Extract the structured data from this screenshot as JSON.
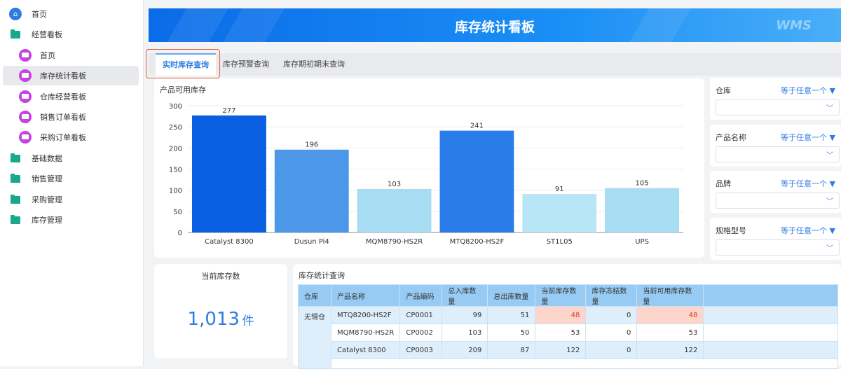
{
  "sidebar": {
    "items": [
      {
        "label": "首页",
        "icon": "home-icon"
      },
      {
        "label": "经营看板",
        "icon": "folder-icon"
      },
      {
        "label": "首页",
        "icon": "dashboard-icon"
      },
      {
        "label": "库存统计看板",
        "icon": "dashboard-icon",
        "active": true
      },
      {
        "label": "仓库经营看板",
        "icon": "dashboard-icon"
      },
      {
        "label": "销售订单看板",
        "icon": "dashboard-icon"
      },
      {
        "label": "采购订单看板",
        "icon": "dashboard-icon"
      },
      {
        "label": "基础数据",
        "icon": "folder-icon"
      },
      {
        "label": "销售管理",
        "icon": "folder-icon"
      },
      {
        "label": "采购管理",
        "icon": "folder-icon"
      },
      {
        "label": "库存管理",
        "icon": "folder-icon"
      }
    ]
  },
  "banner": {
    "title": "库存统计看板",
    "logo": "WMS"
  },
  "tabs": [
    "实时库存查询",
    "库存预警查询",
    "库存期初期末查询"
  ],
  "filters": [
    {
      "label": "仓库",
      "op": "等于任意一个"
    },
    {
      "label": "产品名称",
      "op": "等于任意一个"
    },
    {
      "label": "品牌",
      "op": "等于任意一个"
    },
    {
      "label": "规格型号",
      "op": "等于任意一个"
    }
  ],
  "stat": {
    "title": "当前库存数",
    "value": "1,013",
    "unit": "件"
  },
  "table": {
    "title": "库存统计查询",
    "headers": [
      "仓库",
      "产品名称",
      "产品编码",
      "总入库数量",
      "总出库数量",
      "当前库存数量",
      "库存冻结数量",
      "当前可用库存数量"
    ],
    "warehouse": "无锡仓",
    "rows": [
      [
        "MTQ8200-HS2F",
        "CP0001",
        "99",
        "51",
        "48",
        "0",
        "48"
      ],
      [
        "MQM8790-HS2R",
        "CP0002",
        "103",
        "50",
        "53",
        "0",
        "53"
      ],
      [
        "Catalyst 8300",
        "CP0003",
        "209",
        "87",
        "122",
        "0",
        "122"
      ]
    ]
  },
  "chart_data": {
    "type": "bar",
    "title": "产品可用库存",
    "categories": [
      "Catalyst 8300",
      "Dusun Pi4",
      "MQM8790-HS2R",
      "MTQ8200-HS2F",
      "ST1L05",
      "UPS"
    ],
    "values": [
      277,
      196,
      103,
      241,
      91,
      105
    ],
    "colors": [
      "#0a5ee0",
      "#4d97e8",
      "#a8dcf2",
      "#2a7de8",
      "#b8e6f6",
      "#a8dcf2"
    ],
    "ylim": [
      0,
      300
    ],
    "yticks": [
      "0",
      "50",
      "100",
      "150",
      "200",
      "250",
      "300"
    ],
    "grid": true
  }
}
